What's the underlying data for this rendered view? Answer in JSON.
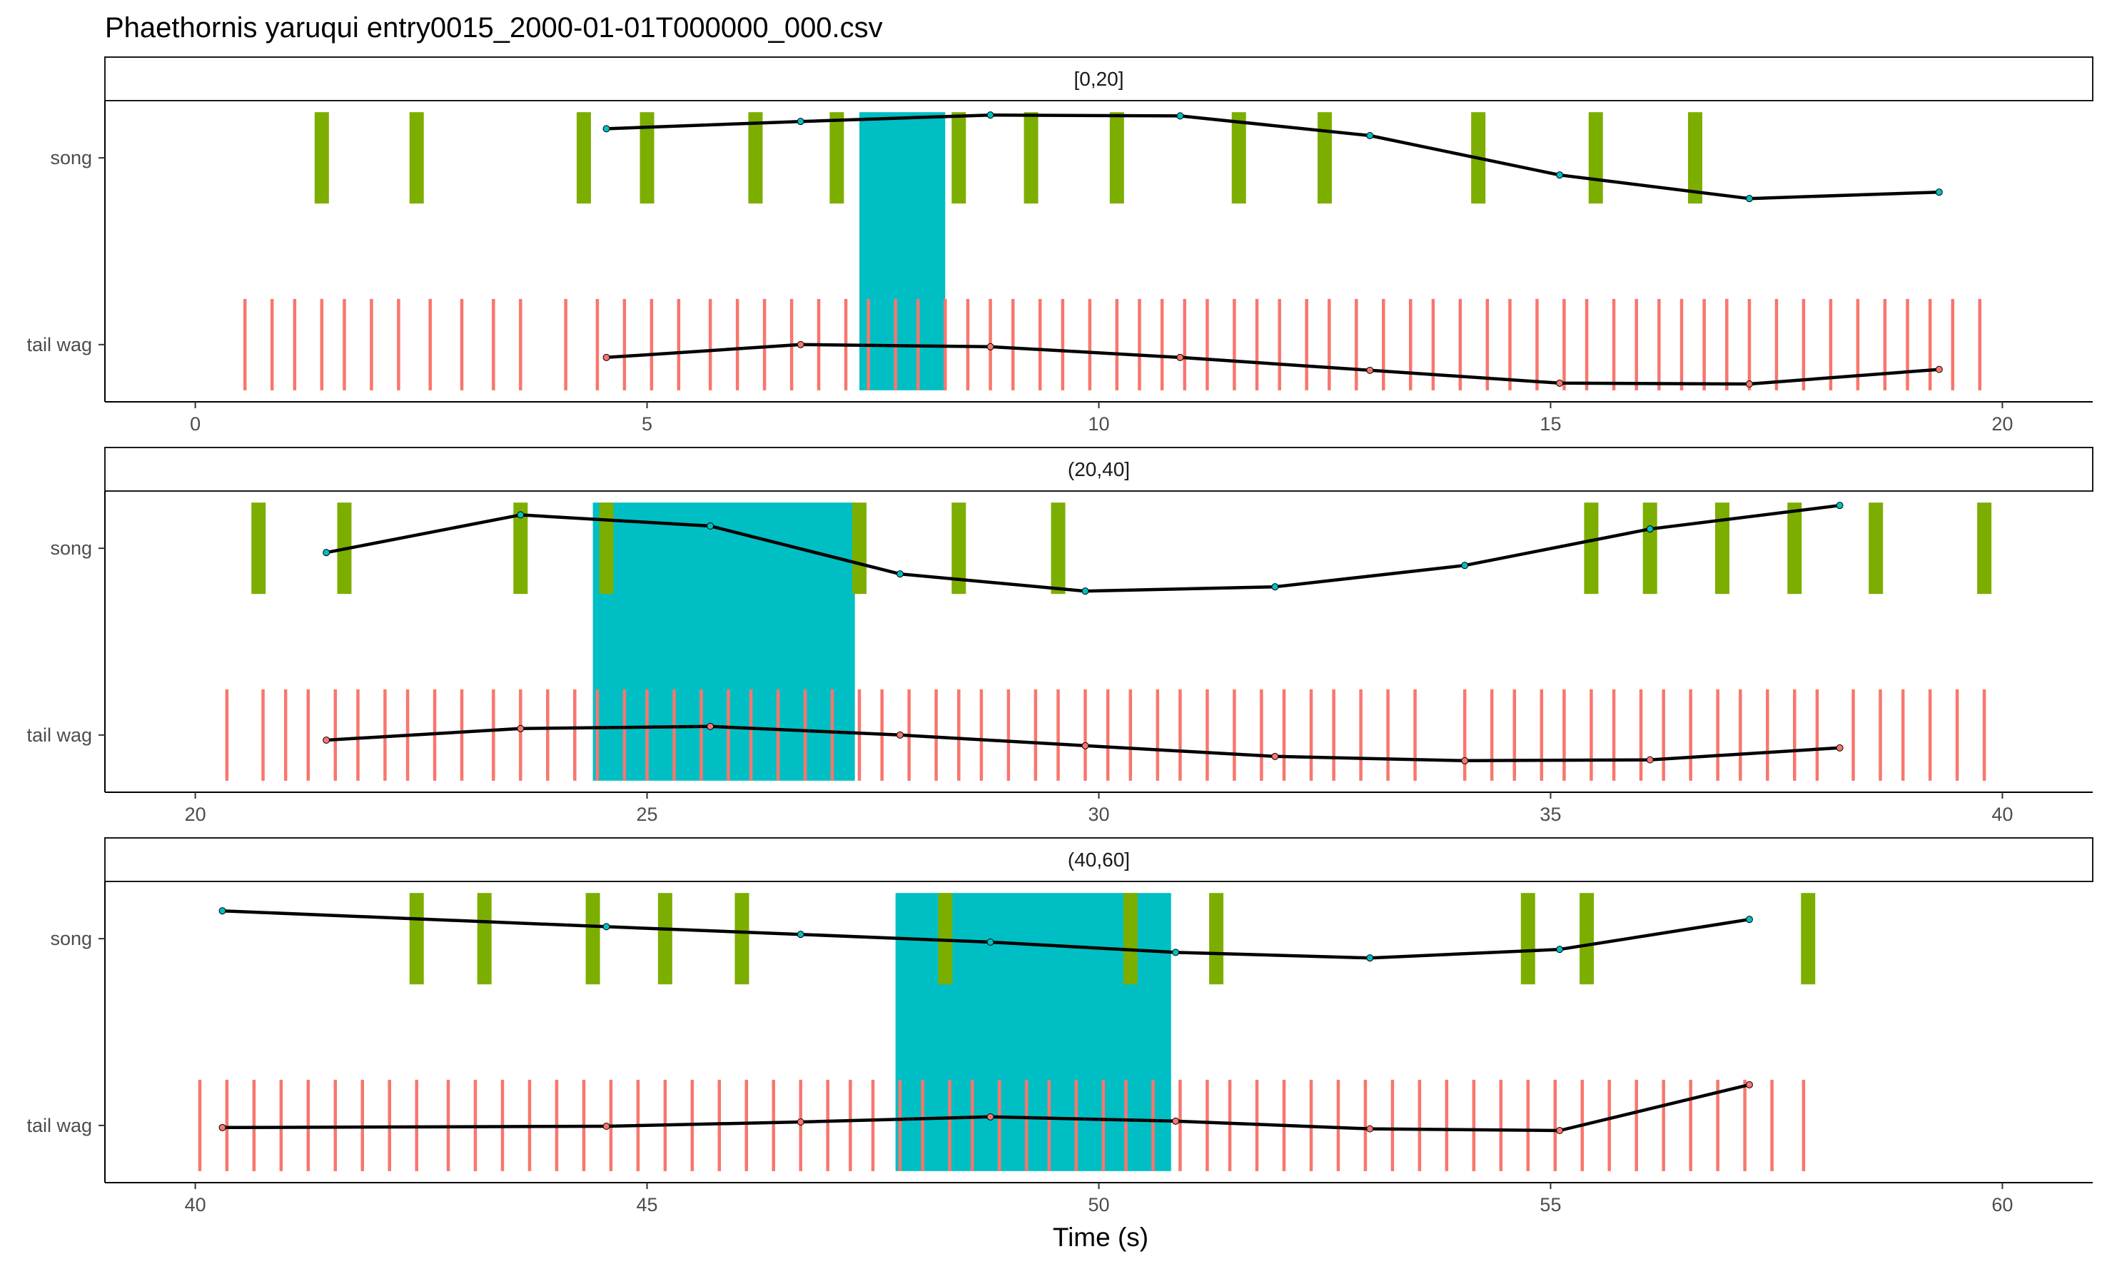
{
  "chart_data": {
    "type": "event-timeline",
    "title": "Phaethornis yaruqui   entry0015_2000-01-01T000000_000.csv",
    "xlabel": "Time (s)",
    "ylabel": "",
    "categories": [
      "song",
      "tail wag"
    ],
    "colors": {
      "song": "#7CAE00",
      "tail wag": "#F8766D",
      "highlight": "#00BFC4",
      "line": "#000000"
    },
    "legend": "none",
    "grid": false,
    "panels": [
      {
        "label": "[0,20]",
        "xlim": [
          -1,
          21
        ],
        "ticks": [
          0,
          5,
          10,
          15,
          20
        ],
        "highlight": [
          7.35,
          8.3
        ],
        "song_events": [
          1.4,
          2.45,
          4.3,
          5.0,
          6.2,
          7.1,
          8.45,
          9.25,
          10.2,
          11.55,
          12.5,
          14.2,
          15.5,
          16.6
        ],
        "tail_events": [
          0.55,
          0.85,
          1.1,
          1.4,
          1.65,
          1.95,
          2.25,
          2.6,
          2.95,
          3.3,
          3.6,
          4.1,
          4.45,
          4.75,
          5.05,
          5.35,
          5.7,
          6.0,
          6.3,
          6.6,
          6.9,
          7.2,
          7.45,
          7.75,
          8.0,
          8.3,
          8.55,
          8.8,
          9.05,
          9.35,
          9.6,
          9.9,
          10.2,
          10.45,
          10.7,
          10.95,
          11.2,
          11.5,
          11.75,
          12.0,
          12.3,
          12.55,
          12.85,
          13.15,
          13.45,
          13.7,
          14.0,
          14.3,
          14.55,
          14.85,
          15.15,
          15.4,
          15.7,
          15.95,
          16.2,
          16.45,
          16.7,
          16.95,
          17.2,
          17.5,
          17.8,
          18.1,
          18.4,
          18.7,
          18.95,
          19.2,
          19.45,
          19.75
        ],
        "song_line": [
          [
            4.55,
            0.68
          ],
          [
            6.7,
            0.85
          ],
          [
            8.8,
            1.0
          ],
          [
            10.9,
            0.98
          ],
          [
            13.0,
            0.52
          ],
          [
            15.1,
            -0.4
          ],
          [
            17.2,
            -0.95
          ],
          [
            19.3,
            -0.8
          ]
        ],
        "tail_line": [
          [
            4.55,
            -0.3
          ],
          [
            6.7,
            0.0
          ],
          [
            8.8,
            -0.05
          ],
          [
            10.9,
            -0.3
          ],
          [
            13.0,
            -0.6
          ],
          [
            15.1,
            -0.9
          ],
          [
            17.2,
            -0.92
          ],
          [
            19.3,
            -0.58
          ]
        ]
      },
      {
        "label": "(20,40]",
        "xlim": [
          19,
          41
        ],
        "ticks": [
          20,
          25,
          30,
          35,
          40
        ],
        "highlight": [
          24.4,
          27.3
        ],
        "song_events": [
          20.7,
          21.65,
          23.6,
          24.55,
          27.35,
          28.45,
          29.55,
          35.45,
          36.1,
          36.9,
          37.7,
          38.6,
          39.8
        ],
        "tail_events": [
          20.35,
          20.75,
          21.0,
          21.25,
          21.55,
          21.8,
          22.1,
          22.35,
          22.65,
          22.95,
          23.3,
          23.6,
          23.9,
          24.2,
          24.45,
          24.75,
          25.0,
          25.3,
          25.6,
          25.9,
          26.15,
          26.45,
          26.75,
          27.05,
          27.35,
          27.6,
          27.9,
          28.2,
          28.45,
          28.7,
          29.0,
          29.3,
          29.55,
          29.85,
          30.1,
          30.35,
          30.65,
          30.9,
          31.2,
          31.5,
          31.8,
          32.05,
          32.35,
          32.6,
          32.9,
          33.2,
          33.5,
          34.05,
          34.35,
          34.6,
          34.9,
          35.15,
          35.45,
          35.7,
          36.0,
          36.25,
          36.55,
          36.85,
          37.1,
          37.4,
          37.7,
          37.95,
          38.35,
          38.65,
          38.9,
          39.2,
          39.5,
          39.8
        ],
        "song_line": [
          [
            21.45,
            -0.1
          ],
          [
            23.6,
            0.78
          ],
          [
            25.7,
            0.52
          ],
          [
            27.8,
            -0.6
          ],
          [
            29.85,
            -1.0
          ],
          [
            31.95,
            -0.9
          ],
          [
            34.05,
            -0.4
          ],
          [
            36.1,
            0.45
          ],
          [
            38.2,
            1.0
          ]
        ],
        "tail_line": [
          [
            21.45,
            -0.12
          ],
          [
            23.6,
            0.15
          ],
          [
            25.7,
            0.2
          ],
          [
            27.8,
            0.0
          ],
          [
            29.85,
            -0.25
          ],
          [
            31.95,
            -0.5
          ],
          [
            34.05,
            -0.6
          ],
          [
            36.1,
            -0.58
          ],
          [
            38.2,
            -0.3
          ]
        ]
      },
      {
        "label": "(40,60]",
        "xlim": [
          39,
          61
        ],
        "ticks": [
          40,
          45,
          50,
          55,
          60
        ],
        "highlight": [
          47.75,
          50.8
        ],
        "song_events": [
          42.45,
          43.2,
          44.4,
          45.2,
          46.05,
          48.3,
          50.35,
          51.3,
          54.75,
          55.4,
          57.85
        ],
        "tail_events": [
          40.05,
          40.35,
          40.65,
          40.95,
          41.25,
          41.55,
          41.85,
          42.15,
          42.45,
          42.8,
          43.1,
          43.4,
          43.7,
          44.0,
          44.3,
          44.6,
          44.9,
          45.2,
          45.5,
          45.8,
          46.1,
          46.4,
          46.7,
          47.0,
          47.25,
          47.5,
          47.8,
          48.05,
          48.35,
          48.6,
          48.9,
          49.2,
          49.45,
          49.75,
          50.05,
          50.3,
          50.6,
          50.9,
          51.2,
          51.45,
          51.75,
          52.05,
          52.35,
          52.65,
          52.95,
          53.25,
          53.55,
          53.85,
          54.15,
          54.45,
          54.75,
          55.05,
          55.35,
          55.65,
          55.95,
          56.25,
          56.55,
          56.85,
          57.15,
          57.45,
          57.8
        ],
        "song_line": [
          [
            40.3,
            0.65
          ],
          [
            44.55,
            0.28
          ],
          [
            46.7,
            0.1
          ],
          [
            48.8,
            -0.08
          ],
          [
            50.85,
            -0.32
          ],
          [
            53.0,
            -0.45
          ],
          [
            55.1,
            -0.25
          ],
          [
            57.2,
            0.45
          ]
        ],
        "tail_line": [
          [
            40.3,
            -0.05
          ],
          [
            44.55,
            -0.02
          ],
          [
            46.7,
            0.08
          ],
          [
            48.8,
            0.2
          ],
          [
            50.85,
            0.1
          ],
          [
            53.0,
            -0.08
          ],
          [
            55.1,
            -0.12
          ],
          [
            57.2,
            0.95
          ]
        ]
      }
    ]
  }
}
